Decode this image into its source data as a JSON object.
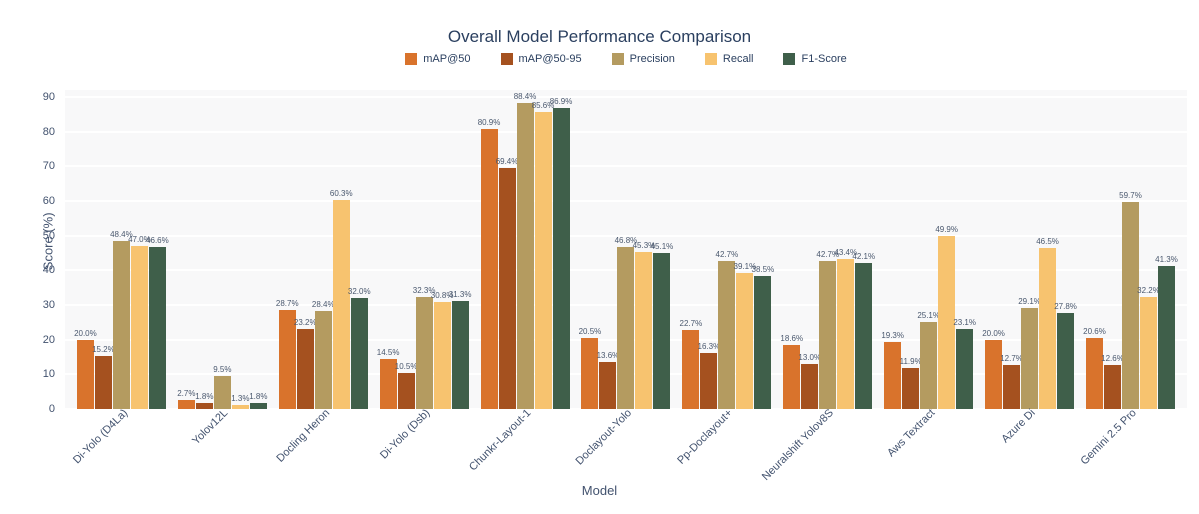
{
  "chart_data": {
    "type": "bar",
    "title": "Overall Model Performance Comparison",
    "xlabel": "Model",
    "ylabel": "Score (%)",
    "ylim": [
      0,
      90
    ],
    "yticks": [
      0,
      10,
      20,
      30,
      40,
      50,
      60,
      70,
      80,
      90
    ],
    "grid": true,
    "legend_position": "top-center",
    "plot_bgcolor": "#f8f8f9",
    "gridline_color": "#ffffff",
    "title_color": "#2a3f5f",
    "value_label_suffix": "%",
    "categories": [
      "Di-Yolo (D4La)",
      "Yolov12L",
      "Docling Heron",
      "Di-Yolo (Dsb)",
      "Chunkr-Layout-1",
      "Doclayout-Yolo",
      "Pp-Doclayout+",
      "Neuralshift Yolov8S",
      "Aws Textract",
      "Azure Di",
      "Gemini 2.5 Pro"
    ],
    "series": [
      {
        "name": "mAP@50",
        "color": "#d9732c",
        "values": [
          20.0,
          2.7,
          28.7,
          14.5,
          80.9,
          20.5,
          22.7,
          18.6,
          19.3,
          20.0,
          20.6
        ]
      },
      {
        "name": "mAP@50-95",
        "color": "#a5511f",
        "values": [
          15.2,
          1.8,
          23.2,
          10.5,
          69.4,
          13.6,
          16.3,
          13.0,
          11.9,
          12.7,
          12.6
        ]
      },
      {
        "name": "Precision",
        "color": "#b49b60",
        "values": [
          48.4,
          9.5,
          28.4,
          32.3,
          88.4,
          46.8,
          42.7,
          42.7,
          25.1,
          29.1,
          59.7
        ]
      },
      {
        "name": "Recall",
        "color": "#f7c36f",
        "values": [
          47.0,
          1.3,
          60.3,
          30.8,
          85.6,
          45.3,
          39.1,
          43.4,
          49.9,
          46.5,
          32.2
        ]
      },
      {
        "name": "F1-Score",
        "color": "#3f5f4a",
        "values": [
          46.6,
          1.8,
          32.0,
          31.3,
          86.9,
          45.1,
          38.5,
          42.1,
          23.1,
          27.8,
          41.3
        ]
      }
    ]
  }
}
